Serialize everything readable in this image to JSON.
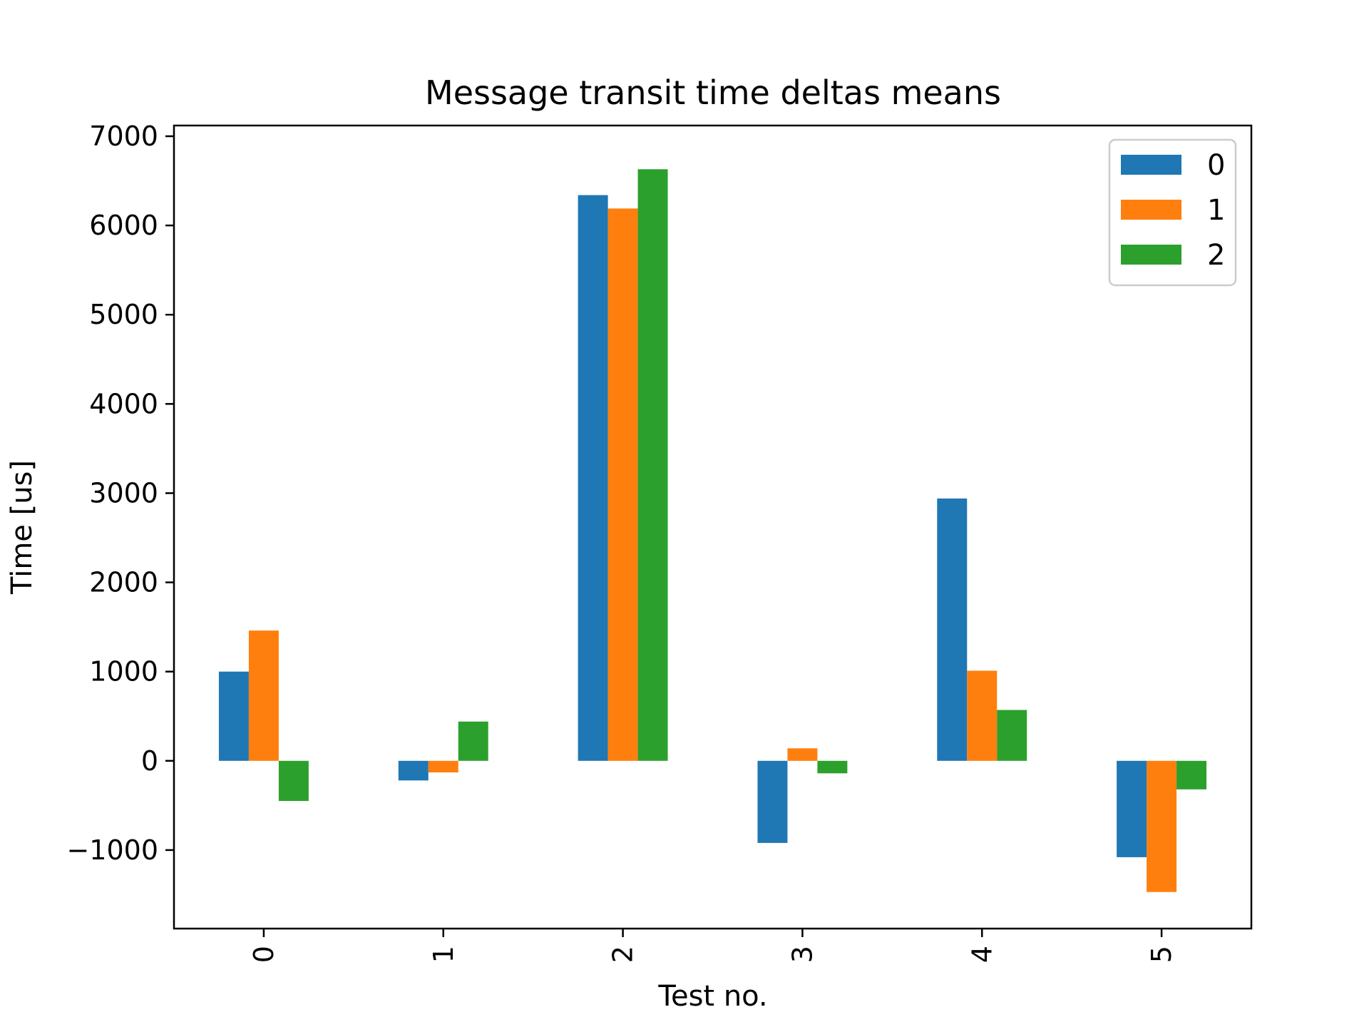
{
  "chart_data": {
    "type": "bar",
    "title": "Message transit time deltas means",
    "xlabel": "Test no.",
    "ylabel": "Time [us]",
    "categories": [
      "0",
      "1",
      "2",
      "3",
      "4",
      "5"
    ],
    "series": [
      {
        "name": "0",
        "color": "#1f77b4",
        "values": [
          1000,
          -220,
          6340,
          -920,
          2940,
          -1080
        ]
      },
      {
        "name": "1",
        "color": "#ff7f0e",
        "values": [
          1460,
          -130,
          6190,
          140,
          1010,
          -1470
        ]
      },
      {
        "name": "2",
        "color": "#2ca02c",
        "values": [
          -450,
          440,
          6630,
          -140,
          570,
          -320
        ]
      }
    ],
    "ylim": [
      -1880,
      7120
    ],
    "yticks": [
      -1000,
      0,
      1000,
      2000,
      3000,
      4000,
      5000,
      6000,
      7000
    ],
    "ytick_labels": [
      "−1000",
      "0",
      "1000",
      "2000",
      "3000",
      "4000",
      "5000",
      "6000",
      "7000"
    ],
    "grid": false,
    "legend_position": "top-right"
  }
}
